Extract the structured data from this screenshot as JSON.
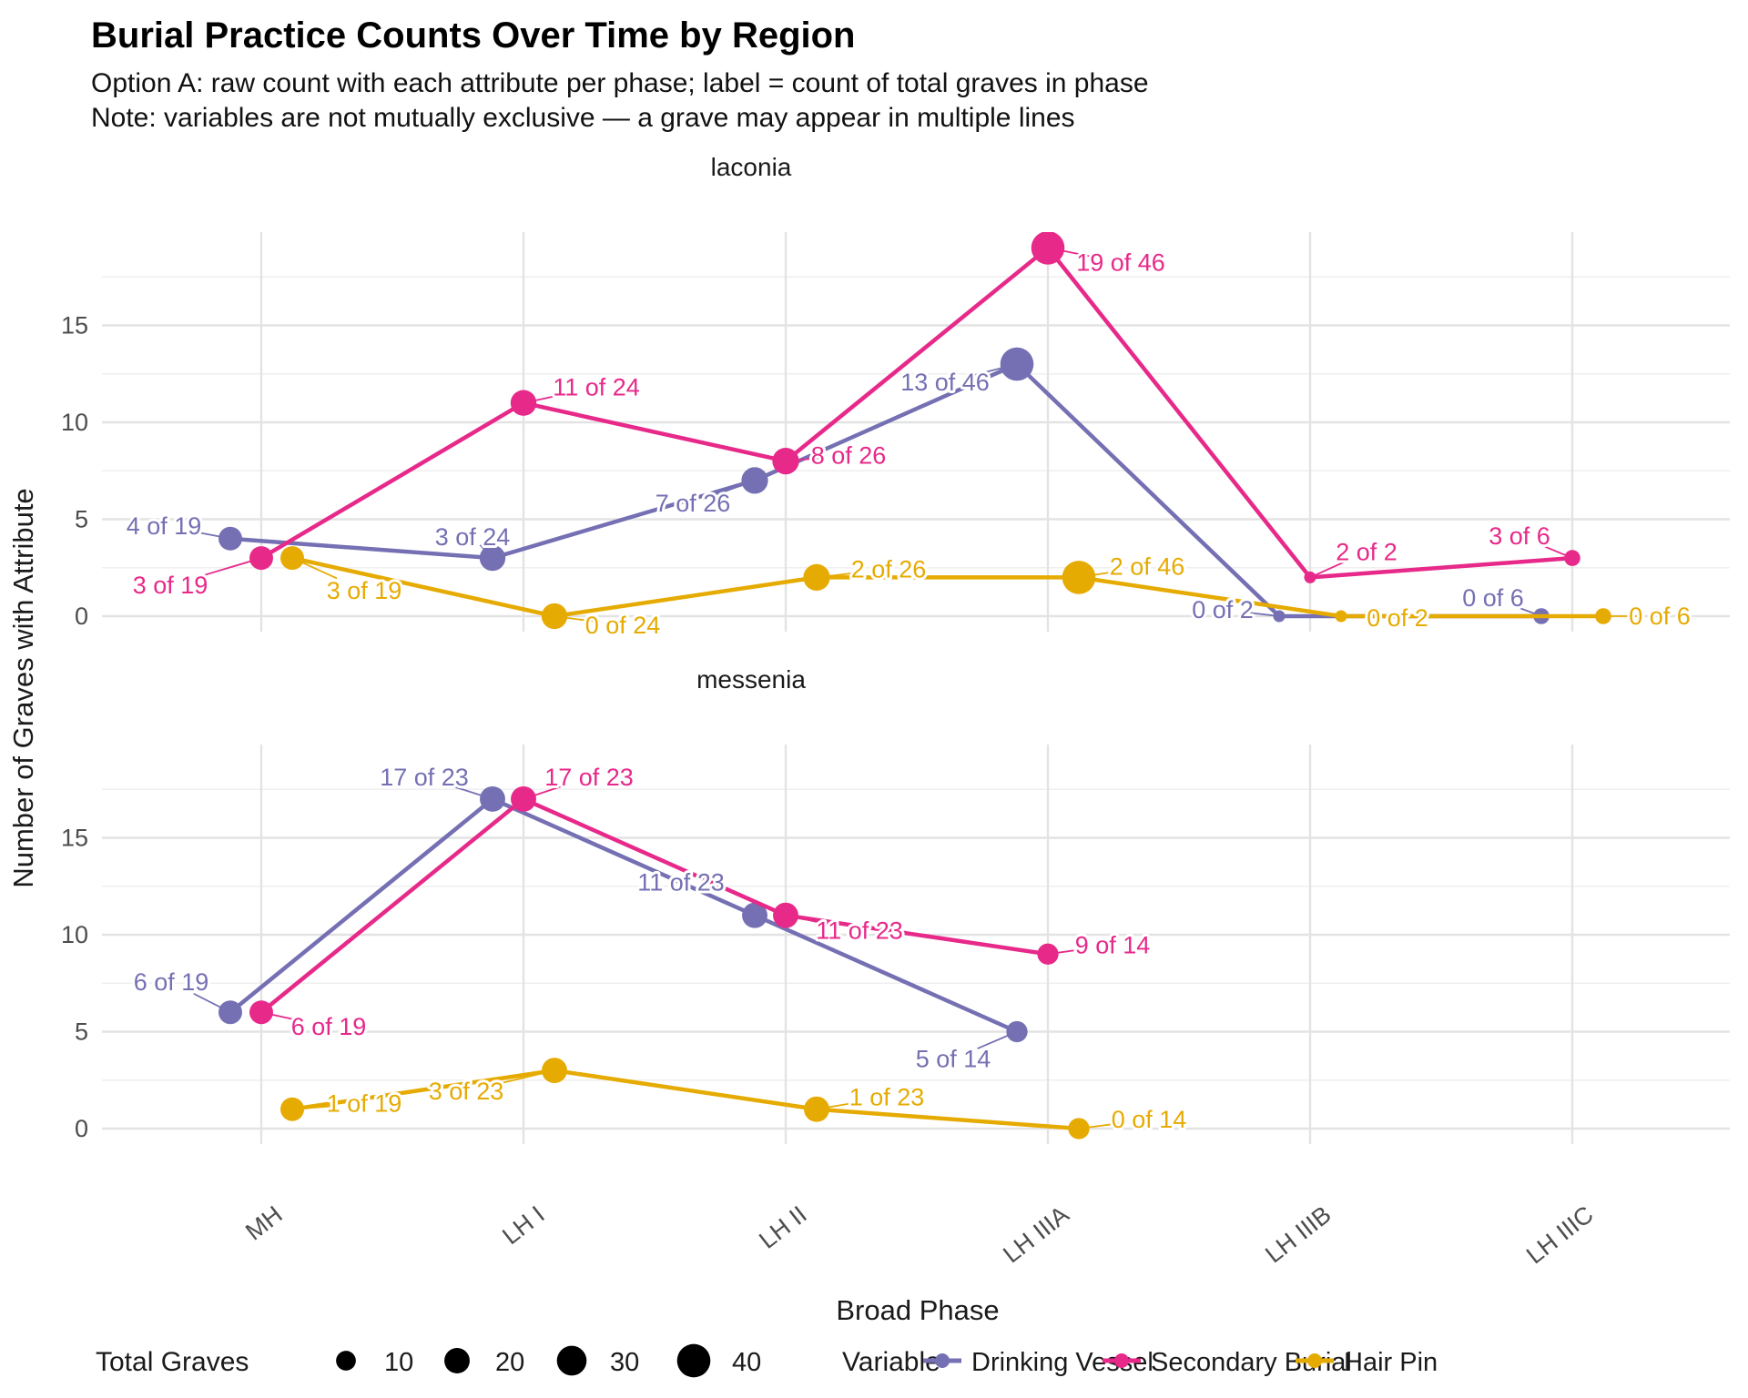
{
  "header": {
    "title": "Burial Practice Counts Over Time by Region",
    "subtitle_line1": "Option A: raw count with each attribute per phase; label = count of total graves in phase",
    "subtitle_line2": "Note: variables are not mutually exclusive — a grave may appear in multiple lines"
  },
  "colors": {
    "drinking_vessel": "#7570b3",
    "secondary_burial": "#e7298a",
    "hair_pin": "#e6ab02",
    "grid_major": "#e3e3e3",
    "grid_minor": "#efefef",
    "tick_text": "#4d4d4d",
    "legend_dot": "#000000"
  },
  "chart_data": {
    "type": "line",
    "title": "Burial Practice Counts Over Time by Region",
    "xlabel": "Broad Phase",
    "ylabel": "Number of Graves with Attribute",
    "categories": [
      "MH",
      "LH I",
      "LH II",
      "LH IIIA",
      "LH IIIB",
      "LH IIIC"
    ],
    "yticks": [
      0,
      5,
      10,
      15
    ],
    "ylim": [
      0,
      19
    ],
    "grid": true,
    "legend_position": "bottom",
    "size_legend": {
      "title": "Total Graves",
      "values": [
        "10",
        "20",
        "30",
        "40"
      ]
    },
    "color_legend": {
      "title": "Variable",
      "items": [
        "Drinking Vessel",
        "Secondary Burial",
        "Hair Pin"
      ]
    },
    "series_colors": {
      "Drinking Vessel": "#7570b3",
      "Secondary Burial": "#e7298a",
      "Hair Pin": "#e6ab02"
    },
    "facets": [
      {
        "label": "laconia",
        "series": [
          {
            "name": "Drinking Vessel",
            "points": [
              {
                "phase": "MH",
                "count": 4,
                "total": 19,
                "label": "4 of 19",
                "dx": -73,
                "dy": -14
              },
              {
                "phase": "LH I",
                "count": 3,
                "total": 24,
                "label": "3 of 24",
                "dx": -22,
                "dy": -23
              },
              {
                "phase": "LH II",
                "count": 7,
                "total": 26,
                "label": "7 of 26",
                "dx": -68,
                "dy": 25
              },
              {
                "phase": "LH IIIA",
                "count": 13,
                "total": 46,
                "label": "13 of 46",
                "dx": -79,
                "dy": 20
              },
              {
                "phase": "LH IIIB",
                "count": 0,
                "total": 2,
                "label": "0 of 2",
                "dx": -62,
                "dy": -7
              },
              {
                "phase": "LH IIIC",
                "count": 0,
                "total": 6,
                "label": "0 of 6",
                "dx": -53,
                "dy": -20
              }
            ]
          },
          {
            "name": "Secondary Burial",
            "points": [
              {
                "phase": "MH",
                "count": 3,
                "total": 19,
                "label": "3 of 19",
                "dx": -100,
                "dy": 30
              },
              {
                "phase": "LH I",
                "count": 11,
                "total": 24,
                "label": "11 of 24",
                "dx": 80,
                "dy": -17
              },
              {
                "phase": "LH II",
                "count": 8,
                "total": 26,
                "label": "8 of 26",
                "dx": 69,
                "dy": -6
              },
              {
                "phase": "LH IIIA",
                "count": 19,
                "total": 46,
                "label": "19 of 46",
                "dx": 80,
                "dy": 16
              },
              {
                "phase": "LH IIIB",
                "count": 2,
                "total": 2,
                "label": "2 of 2",
                "dx": 62,
                "dy": -28
              },
              {
                "phase": "LH IIIC",
                "count": 3,
                "total": 6,
                "label": "3 of 6",
                "dx": -58,
                "dy": -24
              }
            ]
          },
          {
            "name": "Hair Pin",
            "points": [
              {
                "phase": "MH",
                "count": 3,
                "total": 19,
                "label": "3 of 19",
                "dx": 79,
                "dy": 36
              },
              {
                "phase": "LH I",
                "count": 0,
                "total": 24,
                "label": "0 of 24",
                "dx": 75,
                "dy": 10
              },
              {
                "phase": "LH II",
                "count": 2,
                "total": 26,
                "label": "2 of 26",
                "dx": 79,
                "dy": -9
              },
              {
                "phase": "LH IIIA",
                "count": 2,
                "total": 46,
                "label": "2 of 46",
                "dx": 75,
                "dy": -12
              },
              {
                "phase": "LH IIIB",
                "count": 0,
                "total": 2,
                "label": "0 of 2",
                "dx": 62,
                "dy": 2
              },
              {
                "phase": "LH IIIC",
                "count": 0,
                "total": 6,
                "label": "0 of 6",
                "dx": 62,
                "dy": 0
              }
            ]
          }
        ]
      },
      {
        "label": "messenia",
        "series": [
          {
            "name": "Drinking Vessel",
            "points": [
              {
                "phase": "MH",
                "count": 6,
                "total": 19,
                "label": "6 of 19",
                "dx": -65,
                "dy": -33
              },
              {
                "phase": "LH I",
                "count": 17,
                "total": 23,
                "label": "17 of 23",
                "dx": -75,
                "dy": -24
              },
              {
                "phase": "LH II",
                "count": 11,
                "total": 23,
                "label": "11 of 23",
                "dx": -81,
                "dy": -36
              },
              {
                "phase": "LH IIIA",
                "count": 5,
                "total": 14,
                "label": "5 of 14",
                "dx": -70,
                "dy": 30
              }
            ]
          },
          {
            "name": "Secondary Burial",
            "points": [
              {
                "phase": "MH",
                "count": 6,
                "total": 19,
                "label": "6 of 19",
                "dx": 74,
                "dy": 16
              },
              {
                "phase": "LH I",
                "count": 17,
                "total": 23,
                "label": "17 of 23",
                "dx": 72,
                "dy": -24
              },
              {
                "phase": "LH II",
                "count": 11,
                "total": 23,
                "label": "11 of 23",
                "dx": 81,
                "dy": 17
              },
              {
                "phase": "LH IIIA",
                "count": 9,
                "total": 14,
                "label": "9 of 14",
                "dx": 71,
                "dy": -10
              }
            ]
          },
          {
            "name": "Hair Pin",
            "points": [
              {
                "phase": "MH",
                "count": 1,
                "total": 19,
                "label": "1 of 19",
                "dx": 79,
                "dy": -6
              },
              {
                "phase": "LH I",
                "count": 3,
                "total": 23,
                "label": "3 of 23",
                "dx": -97,
                "dy": 23
              },
              {
                "phase": "LH II",
                "count": 1,
                "total": 23,
                "label": "1 of 23",
                "dx": 77,
                "dy": -13
              },
              {
                "phase": "LH IIIA",
                "count": 0,
                "total": 14,
                "label": "0 of 14",
                "dx": 77,
                "dy": -10
              }
            ]
          }
        ]
      }
    ]
  }
}
